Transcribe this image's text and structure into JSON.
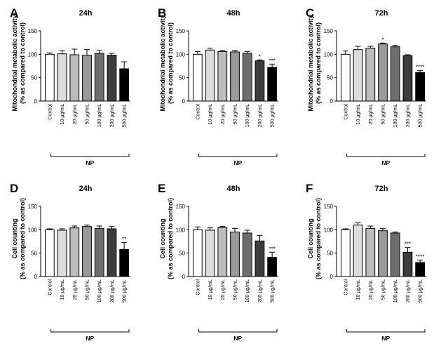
{
  "chart_data": [
    {
      "type": "bar",
      "panel": "A",
      "title": "24h",
      "ylabel": [
        "Mitochondrial metabolic activity",
        "(% as compared to control)"
      ],
      "categories": [
        "Control",
        "10 µg/mL",
        "20 µg/mL",
        "50 µg/mL",
        "100 µg/mL",
        "200 µg/mL",
        "500 µg/mL"
      ],
      "values": [
        100,
        101,
        99,
        98,
        102,
        98,
        69
      ],
      "errors": [
        3,
        7,
        12,
        12,
        6,
        4,
        15
      ],
      "annotations": [
        null,
        null,
        null,
        null,
        null,
        null,
        null
      ],
      "colors": [
        "#ffffff",
        "#dcdcdc",
        "#bcbcbc",
        "#9a9a9a",
        "#6e6e6e",
        "#3c3c3c",
        "#000000"
      ],
      "group_label": "NP",
      "ylim": [
        0,
        150
      ],
      "yticks": [
        0,
        50,
        100,
        150
      ]
    },
    {
      "type": "bar",
      "panel": "B",
      "title": "48h",
      "ylabel": [
        "Mitochondrial metabolic activity",
        "(% as compared to control)"
      ],
      "categories": [
        "Control",
        "10 µg/mL",
        "20 µg/mL",
        "50 µg/mL",
        "100 µg/mL",
        "200 µg/mL",
        "500 µg/mL"
      ],
      "values": [
        100,
        109,
        106,
        105,
        102,
        86,
        72
      ],
      "errors": [
        6,
        4,
        2,
        3,
        4,
        2,
        7
      ],
      "annotations": [
        null,
        null,
        null,
        null,
        null,
        "*",
        "***"
      ],
      "colors": [
        "#ffffff",
        "#dcdcdc",
        "#bcbcbc",
        "#9a9a9a",
        "#6e6e6e",
        "#3c3c3c",
        "#000000"
      ],
      "group_label": "NP",
      "ylim": [
        0,
        150
      ],
      "yticks": [
        0,
        50,
        100,
        150
      ]
    },
    {
      "type": "bar",
      "panel": "C",
      "title": "72h",
      "ylabel": [
        "Mitochondrial metabolic activity",
        "(% as compared to control)"
      ],
      "categories": [
        "Control",
        "10 µg/mL",
        "20 µg/mL",
        "50 µg/mL",
        "100 µg/mL",
        "200 µg/mL",
        "500 µg/mL"
      ],
      "values": [
        100,
        110,
        113,
        122,
        116,
        97,
        61
      ],
      "errors": [
        7,
        7,
        4,
        2,
        3,
        2,
        4
      ],
      "annotations": [
        null,
        null,
        null,
        "*",
        null,
        null,
        "****"
      ],
      "colors": [
        "#ffffff",
        "#dcdcdc",
        "#bcbcbc",
        "#9a9a9a",
        "#6e6e6e",
        "#3c3c3c",
        "#000000"
      ],
      "group_label": "NP",
      "ylim": [
        0,
        150
      ],
      "yticks": [
        0,
        50,
        100,
        150
      ]
    },
    {
      "type": "bar",
      "panel": "D",
      "title": "24h",
      "ylabel": [
        "Cell counting",
        "(% as compared to control)"
      ],
      "categories": [
        "Control",
        "10 µg/mL",
        "20 µg/mL",
        "50 µg/mL",
        "100 µg/mL",
        "200 µg/mL",
        "500 µg/mL"
      ],
      "values": [
        100,
        99,
        104,
        107,
        103,
        102,
        58
      ],
      "errors": [
        2,
        3,
        4,
        3,
        5,
        5,
        15
      ],
      "annotations": [
        null,
        null,
        null,
        null,
        null,
        null,
        "**"
      ],
      "colors": [
        "#ffffff",
        "#dcdcdc",
        "#bcbcbc",
        "#9a9a9a",
        "#6e6e6e",
        "#3c3c3c",
        "#000000"
      ],
      "group_label": "NP",
      "ylim": [
        0,
        150
      ],
      "yticks": [
        0,
        50,
        100,
        150
      ]
    },
    {
      "type": "bar",
      "panel": "E",
      "title": "48h",
      "ylabel": [
        "Cell counting",
        "(% as compared to control)"
      ],
      "categories": [
        "Control",
        "10 µg/mL",
        "20 µg/mL",
        "50 µg/mL",
        "100 µg/mL",
        "200 µg/mL",
        "500 µg/mL"
      ],
      "values": [
        100,
        99,
        105,
        95,
        93,
        76,
        41
      ],
      "errors": [
        6,
        5,
        2,
        8,
        6,
        12,
        11
      ],
      "annotations": [
        null,
        null,
        null,
        null,
        null,
        null,
        "***"
      ],
      "colors": [
        "#ffffff",
        "#dcdcdc",
        "#bcbcbc",
        "#9a9a9a",
        "#6e6e6e",
        "#3c3c3c",
        "#000000"
      ],
      "group_label": "NP",
      "ylim": [
        0,
        150
      ],
      "yticks": [
        0,
        50,
        100,
        150
      ]
    },
    {
      "type": "bar",
      "panel": "F",
      "title": "72h",
      "ylabel": [
        "Cell counting",
        "(% as compared to control)"
      ],
      "categories": [
        "Control",
        "10 µg/mL",
        "20 µg/mL",
        "50 µg/mL",
        "100 µg/mL",
        "200 µg/mL",
        "500 µg/mL"
      ],
      "values": [
        100,
        110,
        103,
        98,
        93,
        52,
        30
      ],
      "errors": [
        2,
        5,
        5,
        5,
        2,
        10,
        5
      ],
      "annotations": [
        null,
        null,
        null,
        null,
        null,
        "***",
        "****"
      ],
      "colors": [
        "#ffffff",
        "#dcdcdc",
        "#bcbcbc",
        "#9a9a9a",
        "#6e6e6e",
        "#3c3c3c",
        "#000000"
      ],
      "group_label": "NP",
      "ylim": [
        0,
        150
      ],
      "yticks": [
        0,
        50,
        100,
        150
      ]
    }
  ]
}
